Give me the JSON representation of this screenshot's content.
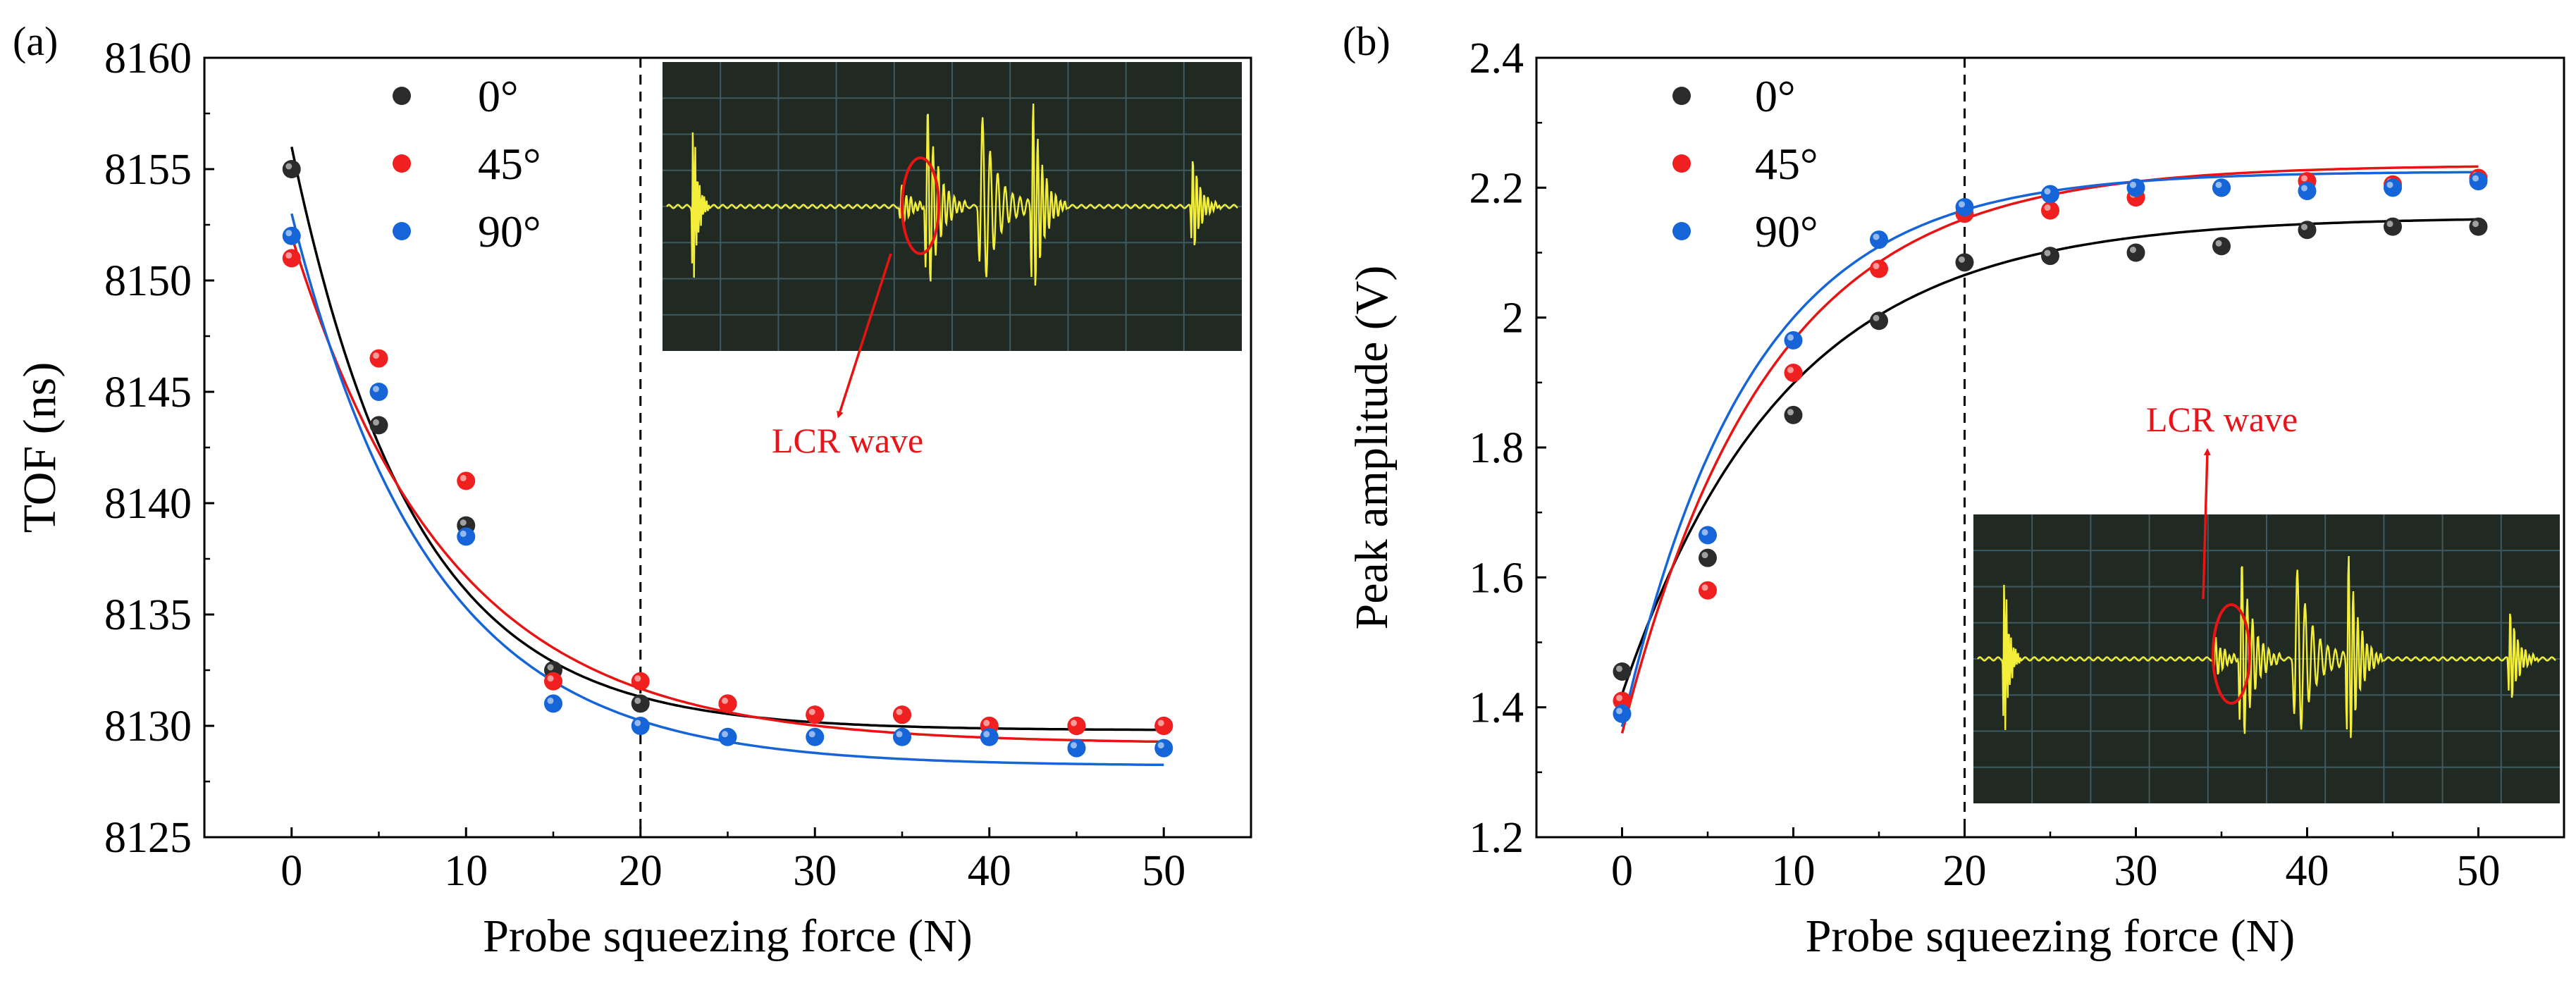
{
  "chart_data": [
    {
      "type": "scatter",
      "panel_label": "(a)",
      "xlabel": "Probe squeezing force (N)",
      "ylabel": "TOF (ns)",
      "xlim": [
        -5,
        55
      ],
      "ylim": [
        8125,
        8160
      ],
      "xticks": [
        0,
        10,
        20,
        30,
        40,
        50
      ],
      "yticks": [
        8125,
        8130,
        8135,
        8140,
        8145,
        8150,
        8155,
        8160
      ],
      "grid": false,
      "legend_position": "top-left",
      "reference_line_x": 20,
      "fit_curves": true,
      "series": [
        {
          "name": "0°",
          "color": "#2b2b2b",
          "x": [
            0,
            5,
            10,
            15,
            20,
            25,
            30,
            35,
            40,
            45,
            50
          ],
          "y": [
            8155,
            8143.5,
            8139,
            8132.5,
            8131,
            8131,
            8130.5,
            8130.5,
            8130,
            8130,
            8130
          ]
        },
        {
          "name": "45°",
          "color": "#f02020",
          "x": [
            0,
            5,
            10,
            15,
            20,
            25,
            30,
            35,
            40,
            45,
            50
          ],
          "y": [
            8151,
            8146.5,
            8141,
            8132,
            8132,
            8131,
            8130.5,
            8130.5,
            8130,
            8130,
            8130
          ]
        },
        {
          "name": "90°",
          "color": "#1565d8",
          "x": [
            0,
            5,
            10,
            15,
            20,
            25,
            30,
            35,
            40,
            45,
            50
          ],
          "y": [
            8152,
            8145,
            8138.5,
            8131,
            8130,
            8129.5,
            8129.5,
            8129.5,
            8129.5,
            8129,
            8129
          ]
        }
      ],
      "fits": [
        {
          "color": "#000000",
          "y0": 8156,
          "yinf": 8129.8,
          "tau": 7
        },
        {
          "color": "#e81414",
          "y0": 8152,
          "yinf": 8129.2,
          "tau": 9
        },
        {
          "color": "#1565d8",
          "y0": 8153,
          "yinf": 8128.2,
          "tau": 8
        }
      ],
      "inset": {
        "annotation": "LCR wave"
      }
    },
    {
      "type": "scatter",
      "panel_label": "(b)",
      "xlabel": "Probe squeezing force (N)",
      "ylabel": "Peak amplitude (V)",
      "xlim": [
        -5,
        55
      ],
      "ylim": [
        1.2,
        2.4
      ],
      "xticks": [
        0,
        10,
        20,
        30,
        40,
        50
      ],
      "yticks": [
        1.2,
        1.4,
        1.6,
        1.8,
        2.0,
        2.2,
        2.4
      ],
      "grid": false,
      "legend_position": "top-left",
      "reference_line_x": 20,
      "fit_curves": true,
      "series": [
        {
          "name": "0°",
          "color": "#2b2b2b",
          "x": [
            0,
            5,
            10,
            15,
            20,
            25,
            30,
            35,
            40,
            45,
            50
          ],
          "y": [
            1.455,
            1.63,
            1.85,
            1.995,
            2.085,
            2.095,
            2.1,
            2.11,
            2.135,
            2.14,
            2.14
          ]
        },
        {
          "name": "45°",
          "color": "#f02020",
          "x": [
            0,
            5,
            10,
            15,
            20,
            25,
            30,
            35,
            40,
            45,
            50
          ],
          "y": [
            1.41,
            1.58,
            1.915,
            2.075,
            2.16,
            2.165,
            2.185,
            2.2,
            2.21,
            2.205,
            2.215
          ]
        },
        {
          "name": "90°",
          "color": "#1565d8",
          "x": [
            0,
            5,
            10,
            15,
            20,
            25,
            30,
            35,
            40,
            45,
            50
          ],
          "y": [
            1.39,
            1.665,
            1.965,
            2.12,
            2.17,
            2.19,
            2.2,
            2.2,
            2.195,
            2.2,
            2.21
          ]
        }
      ],
      "fits": [
        {
          "color": "#000000",
          "y0": 1.42,
          "yinf": 2.155,
          "tau": 9.5
        },
        {
          "color": "#e81414",
          "y0": 1.36,
          "yinf": 2.235,
          "tau": 8.5
        },
        {
          "color": "#1565d8",
          "y0": 1.37,
          "yinf": 2.225,
          "tau": 7.5
        }
      ],
      "inset": {
        "annotation": "LCR wave"
      }
    }
  ]
}
